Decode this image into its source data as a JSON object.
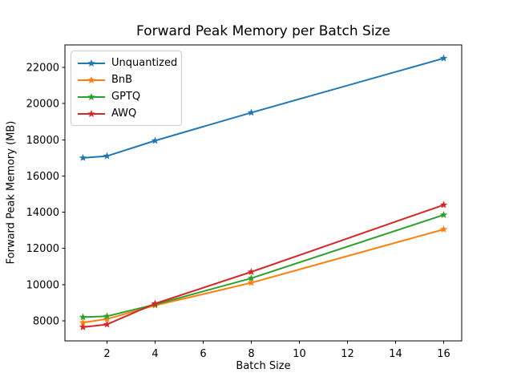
{
  "figure": {
    "title": "Forward Peak Memory per Batch Size",
    "xlabel": "Batch Size",
    "ylabel": "Forward Peak Memory (MB)"
  },
  "chart_data": {
    "type": "line",
    "title": "Forward Peak Memory per Batch Size",
    "xlabel": "Batch Size",
    "ylabel": "Forward Peak Memory (MB)",
    "x": [
      1,
      2,
      4,
      8,
      16
    ],
    "series": [
      {
        "name": "Unquantized",
        "color": "#1f77b4",
        "marker": "star",
        "values": [
          17000,
          17100,
          17950,
          19500,
          22500
        ]
      },
      {
        "name": "BnB",
        "color": "#ff7f0e",
        "marker": "star",
        "values": [
          7900,
          8100,
          8850,
          10100,
          13050
        ]
      },
      {
        "name": "GPTQ",
        "color": "#2ca02c",
        "marker": "star",
        "values": [
          8200,
          8250,
          8900,
          10350,
          13850
        ]
      },
      {
        "name": "AWQ",
        "color": "#d62728",
        "marker": "star",
        "values": [
          7650,
          7800,
          8950,
          10700,
          14400
        ]
      }
    ],
    "xlim": [
      0.25,
      16.75
    ],
    "ylim": [
      6890,
      23240
    ],
    "xticks": [
      2,
      4,
      6,
      8,
      10,
      12,
      14,
      16
    ],
    "yticks": [
      8000,
      10000,
      12000,
      14000,
      16000,
      18000,
      20000,
      22000
    ],
    "grid": false,
    "legend_position": "upper left",
    "colors": {
      "spine": "#000000",
      "background": "#ffffff",
      "legend_border": "#cccccc"
    }
  }
}
